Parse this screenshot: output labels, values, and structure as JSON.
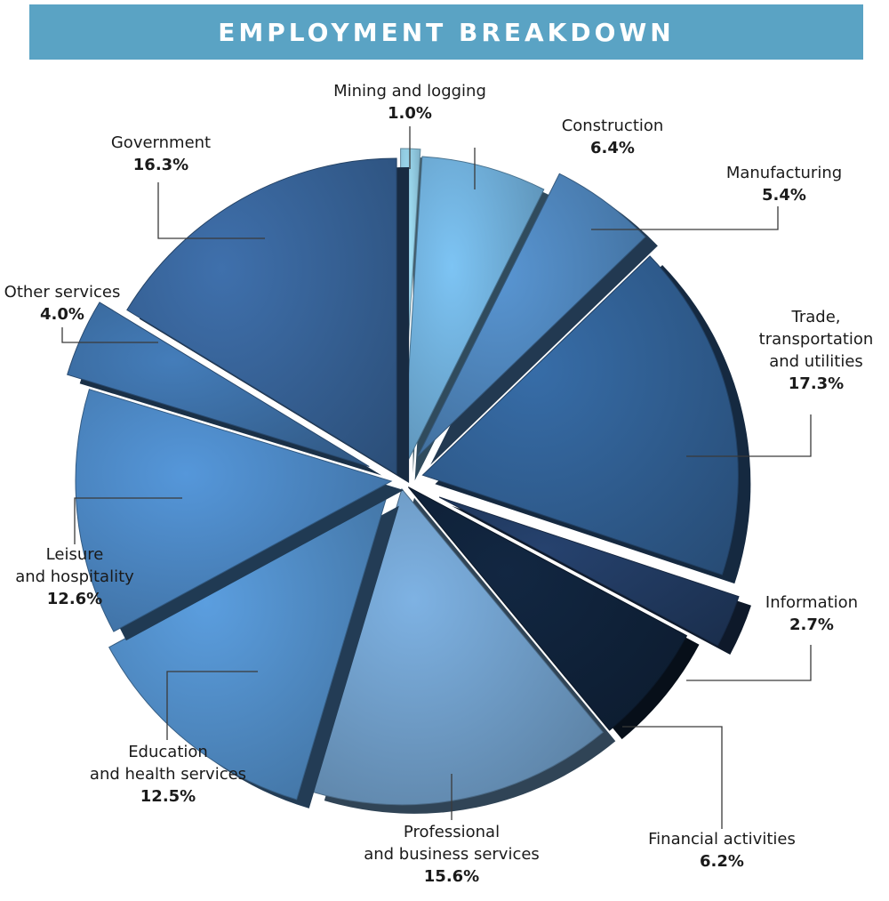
{
  "chart_data": {
    "type": "pie",
    "title": "EMPLOYMENT BREAKDOWN",
    "unit": "%",
    "categories": [
      "Mining and logging",
      "Construction",
      "Manufacturing",
      "Trade, transportation and utilities",
      "Information",
      "Financial activities",
      "Professional and business services",
      "Education and health services",
      "Leisure and hospitality",
      "Other services",
      "Government"
    ],
    "labels": [
      [
        "Mining and logging"
      ],
      [
        "Construction"
      ],
      [
        "Manufacturing"
      ],
      [
        "Trade,",
        "transportation",
        "and utilities"
      ],
      [
        "Information"
      ],
      [
        "Financial activities"
      ],
      [
        "Professional",
        "and business services"
      ],
      [
        "Education",
        "and health services"
      ],
      [
        "Leisure",
        "and hospitality"
      ],
      [
        "Other services"
      ],
      [
        "Government"
      ]
    ],
    "values": [
      1.0,
      6.4,
      5.4,
      17.3,
      2.7,
      6.2,
      15.6,
      12.5,
      12.6,
      4.0,
      16.3
    ],
    "display_values": [
      "1.0%",
      "6.4%",
      "5.4%",
      "17.3%",
      "2.7%",
      "6.2%",
      "15.6%",
      "12.5%",
      "12.6%",
      "4.0%",
      "16.3%"
    ],
    "colors": [
      "#8ec6e2",
      "#6aa6cf",
      "#4b7fb3",
      "#2f5c8e",
      "#20385d",
      "#0f2138",
      "#6b97c0",
      "#4d86bd",
      "#4880b9",
      "#3a6a9e",
      "#355f92"
    ],
    "legend": "none",
    "style": "exploded 3D pie with callout labels"
  }
}
